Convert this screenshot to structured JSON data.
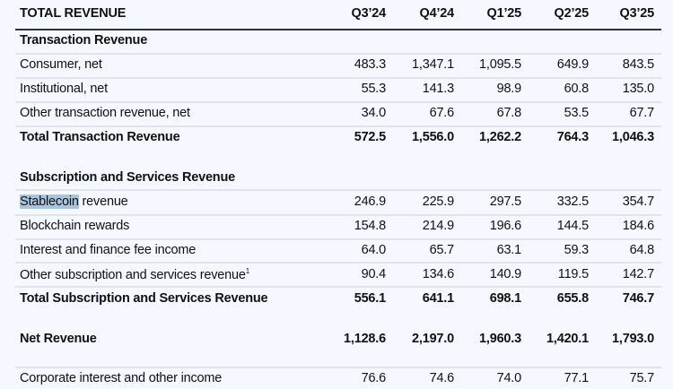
{
  "header": {
    "title": "TOTAL REVENUE",
    "columns": [
      "Q3’24",
      "Q4’24",
      "Q1’25",
      "Q2’25",
      "Q3’25"
    ]
  },
  "sections": {
    "transaction": {
      "heading": "Transaction Revenue",
      "rows": [
        {
          "label": "Consumer, net",
          "values": [
            "483.3",
            "1,347.1",
            "1,095.5",
            "649.9",
            "843.5"
          ]
        },
        {
          "label": "Institutional, net",
          "values": [
            "55.3",
            "141.3",
            "98.9",
            "60.8",
            "135.0"
          ]
        },
        {
          "label": "Other transaction revenue, net",
          "values": [
            "34.0",
            "67.6",
            "67.8",
            "53.5",
            "67.7"
          ]
        }
      ],
      "total": {
        "label": "Total Transaction Revenue",
        "values": [
          "572.5",
          "1,556.0",
          "1,262.2",
          "764.3",
          "1,046.3"
        ]
      }
    },
    "subscription": {
      "heading": "Subscription and Services Revenue",
      "rows": [
        {
          "label_highlight": "Stablecoin",
          "label": " revenue",
          "values": [
            "246.9",
            "225.9",
            "297.5",
            "332.5",
            "354.7"
          ]
        },
        {
          "label": "Blockchain rewards",
          "values": [
            "154.8",
            "214.9",
            "196.6",
            "144.5",
            "184.6"
          ]
        },
        {
          "label": "Interest and finance fee income",
          "values": [
            "64.0",
            "65.7",
            "63.1",
            "59.3",
            "64.8"
          ]
        },
        {
          "label": "Other subscription and services revenue",
          "footnote": "1",
          "values": [
            "90.4",
            "134.6",
            "140.9",
            "119.5",
            "142.7"
          ]
        }
      ],
      "total": {
        "label": "Total Subscription and Services Revenue",
        "values": [
          "556.1",
          "641.1",
          "698.1",
          "655.8",
          "746.7"
        ]
      }
    }
  },
  "net_revenue": {
    "label": "Net Revenue",
    "values": [
      "1,128.6",
      "2,197.0",
      "1,960.3",
      "1,420.1",
      "1,793.0"
    ]
  },
  "corporate": {
    "label": "Corporate interest and other income",
    "values": [
      "76.6",
      "74.6",
      "74.0",
      "77.1",
      "75.7"
    ]
  }
}
